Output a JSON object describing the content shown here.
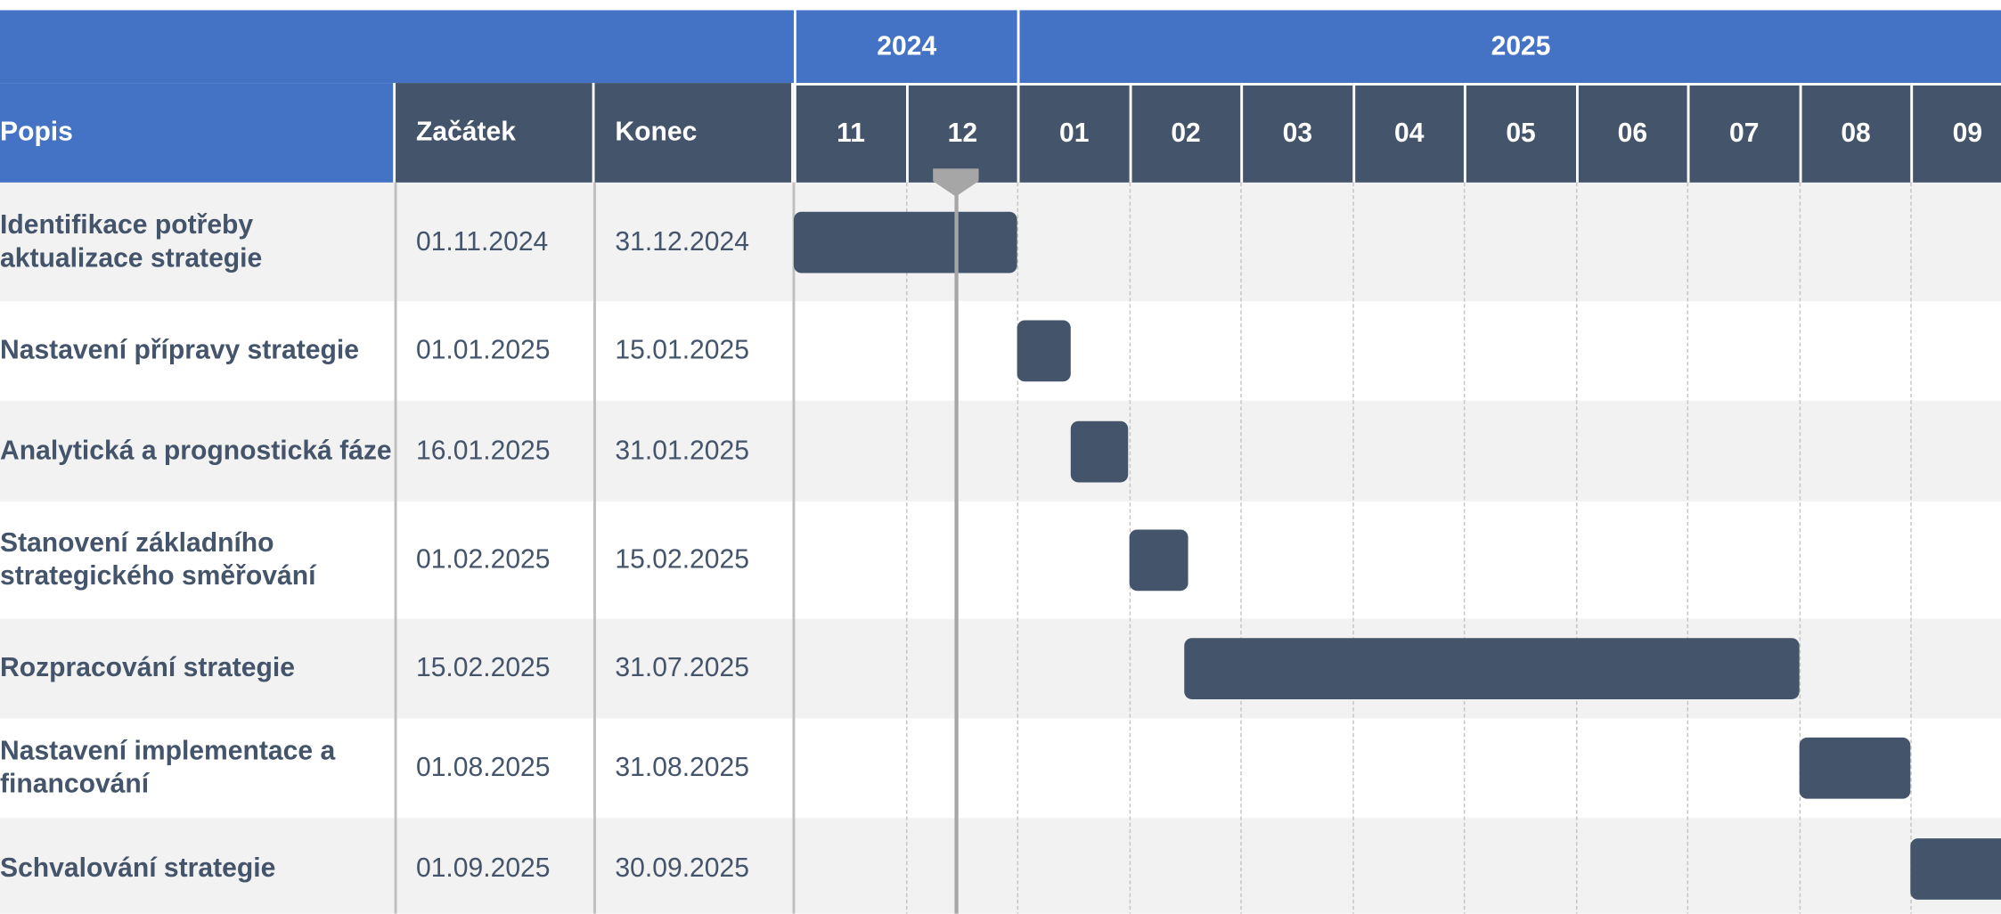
{
  "chart_data": {
    "type": "gantt",
    "columns": [
      "Popis",
      "Začátek",
      "Konec"
    ],
    "years": [
      {
        "label": "2024",
        "months": [
          "11",
          "12"
        ]
      },
      {
        "label": "2025",
        "months": [
          "01",
          "02",
          "03",
          "04",
          "05",
          "06",
          "07",
          "08",
          "09"
        ]
      }
    ],
    "bar_color": "#44546a",
    "tasks": [
      {
        "name": "Identifikace potřeby aktualizace strategie",
        "start": "01.11.2024",
        "end": "31.12.2024"
      },
      {
        "name": "Nastavení přípravy strategie",
        "start": "01.01.2025",
        "end": "15.01.2025"
      },
      {
        "name": "Analytická a prognostická fáze",
        "start": "16.01.2025",
        "end": "31.01.2025"
      },
      {
        "name": "Stanovení základního strategického směřování",
        "start": "01.02.2025",
        "end": "15.02.2025"
      },
      {
        "name": "Rozpracování strategie",
        "start": "15.02.2025",
        "end": "31.07.2025"
      },
      {
        "name": "Nastavení implementace a financování",
        "start": "01.08.2025",
        "end": "31.08.2025"
      },
      {
        "name": "Schvalování strategie",
        "start": "01.09.2025",
        "end": "30.09.2025"
      }
    ]
  }
}
